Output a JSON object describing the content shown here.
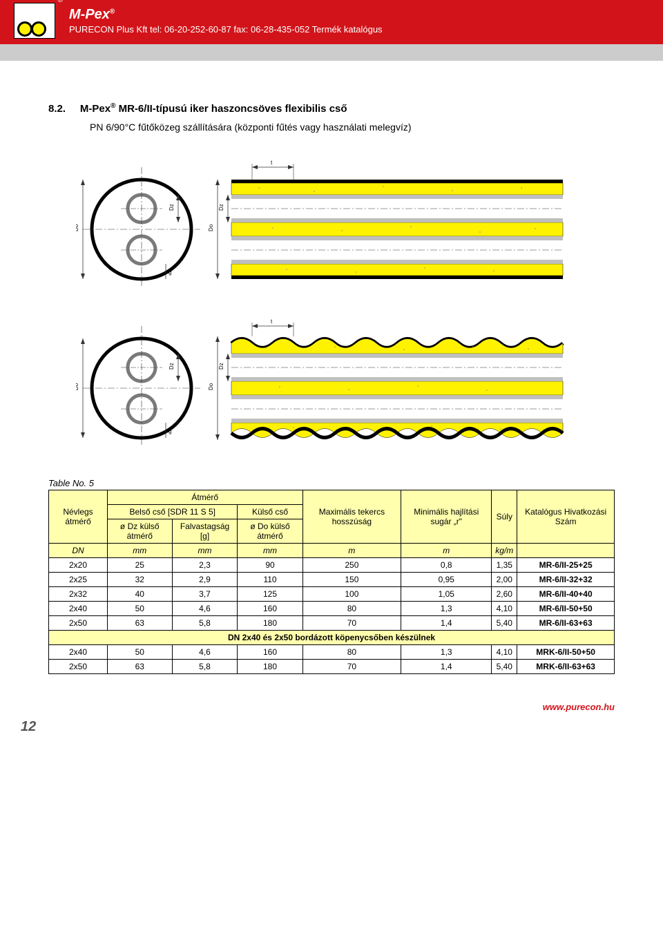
{
  "header": {
    "brand": "M-Pex",
    "contact": "PURECON Plus Kft tel: 06-20-252-60-87 fax: 06-28-435-052 Termék katalógus"
  },
  "section": {
    "num": "8.2.",
    "title_pre": "M-Pex",
    "title_post": " MR-6/II-típusú iker haszoncsöves flexibilis cső",
    "subtitle": "PN 6/90°C fűtőközeg szállítására (központi fűtés vagy használati melegvíz)"
  },
  "diagram": {
    "colors": {
      "insulation": "#fff200",
      "outline": "#000000",
      "pipe_fill": "#ffffff",
      "pipe_stroke": "#7a7a7a",
      "dim_line": "#333333"
    },
    "labels": {
      "Do": "Do",
      "Dz": "Dz",
      "g": "g",
      "t": "t"
    }
  },
  "table": {
    "caption": "Table No. 5",
    "headers": {
      "nom": "Névlegs átmérő",
      "atmero": "Átmérő",
      "belso": "Belső cső [SDR 11 S 5]",
      "kulso": "Külső cső",
      "odz": "ø Dz külső átmérő",
      "fal": "Falvastagság [g]",
      "odo": "ø Do külső átmérő",
      "max": "Maximális tekercs hosszúság",
      "min": "Minimális hajlítási sugár „r\"",
      "suly": "Súly",
      "kat": "Katalógus Hivatkozási Szám"
    },
    "units": [
      "DN",
      "mm",
      "mm",
      "mm",
      "m",
      "m",
      "kg/m",
      ""
    ],
    "rows": [
      [
        "2x20",
        "25",
        "2,3",
        "90",
        "250",
        "0,8",
        "1,35",
        "MR-6/II-25+25"
      ],
      [
        "2x25",
        "32",
        "2,9",
        "110",
        "150",
        "0,95",
        "2,00",
        "MR-6/II-32+32"
      ],
      [
        "2x32",
        "40",
        "3,7",
        "125",
        "100",
        "1,05",
        "2,60",
        "MR-6/II-40+40"
      ],
      [
        "2x40",
        "50",
        "4,6",
        "160",
        "80",
        "1,3",
        "4,10",
        "MR-6/II-50+50"
      ],
      [
        "2x50",
        "63",
        "5,8",
        "180",
        "70",
        "1,4",
        "5,40",
        "MR-6/II-63+63"
      ]
    ],
    "span_note": "DN 2x40 és 2x50 bordázott köpenycsőben készülnek",
    "rows2": [
      [
        "2x40",
        "50",
        "4,6",
        "160",
        "80",
        "1,3",
        "4,10",
        "MRK-6/II-50+50"
      ],
      [
        "2x50",
        "63",
        "5,8",
        "180",
        "70",
        "1,4",
        "5,40",
        "MRK-6/II-63+63"
      ]
    ]
  },
  "footer": {
    "url": "www.purecon.hu",
    "page": "12"
  }
}
